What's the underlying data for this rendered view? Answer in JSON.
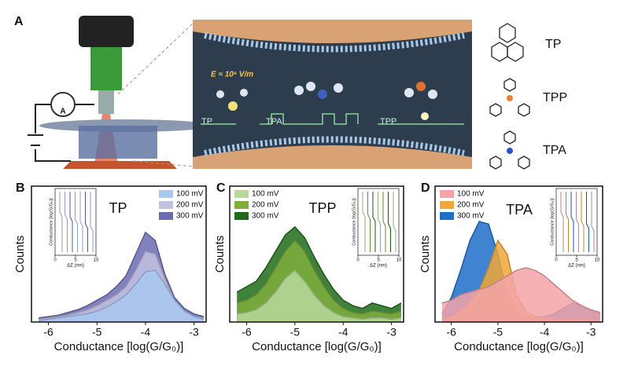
{
  "panel_a": {
    "panel": "A",
    "field_label": "E ≈ 10⁸ V/m",
    "junction_labels": [
      "TP",
      "TPA",
      "TPP"
    ],
    "molecules": [
      "TP",
      "TPP",
      "TPA"
    ]
  },
  "chart_data": [
    {
      "type": "area",
      "panel": "B",
      "title": "TP",
      "xlabel": "Conductance [log(G/G₀)]",
      "ylabel": "Counts",
      "x": [
        -6.2,
        -6.0,
        -5.8,
        -5.6,
        -5.4,
        -5.2,
        -5.0,
        -4.8,
        -4.6,
        -4.4,
        -4.2,
        -4.0,
        -3.8,
        -3.6,
        -3.4,
        -3.2,
        -3.0,
        -2.8
      ],
      "xlim": [
        -6.35,
        -2.75
      ],
      "xticks": [
        -6,
        -5,
        -4,
        -3
      ],
      "ylim": [
        0,
        100
      ],
      "legend": "upper right",
      "series": [
        {
          "name": "100 mV",
          "color": "#a9c8f0",
          "values": [
            1,
            2,
            3,
            4,
            5,
            6,
            8,
            11,
            15,
            20,
            28,
            37,
            38,
            28,
            16,
            8,
            4,
            2
          ]
        },
        {
          "name": "200 mV",
          "color": "#c3c1e0",
          "values": [
            2,
            3,
            4,
            5,
            7,
            9,
            12,
            16,
            20,
            26,
            38,
            52,
            50,
            32,
            16,
            8,
            4,
            3
          ]
        },
        {
          "name": "300 mV",
          "color": "#6b6bb3",
          "values": [
            3,
            4,
            5,
            7,
            9,
            12,
            16,
            20,
            26,
            34,
            50,
            66,
            60,
            35,
            18,
            10,
            6,
            4
          ]
        }
      ],
      "inset": {
        "xlabel": "ΔZ (nm)",
        "ylabel": "Conductance [log(G/G₀)]",
        "xlim": [
          0,
          10
        ],
        "xticks": [
          0,
          5,
          10
        ]
      }
    },
    {
      "type": "area",
      "panel": "C",
      "title": "TPP",
      "xlabel": "Conductance [log(G/G₀)]",
      "ylabel": "Counts",
      "x": [
        -6.2,
        -6.0,
        -5.8,
        -5.6,
        -5.4,
        -5.2,
        -5.0,
        -4.8,
        -4.6,
        -4.4,
        -4.2,
        -4.0,
        -3.8,
        -3.6,
        -3.4,
        -3.2,
        -3.0,
        -2.8
      ],
      "xlim": [
        -6.35,
        -2.75
      ],
      "xticks": [
        -6,
        -5,
        -4,
        -3
      ],
      "ylim": [
        0,
        100
      ],
      "legend": "upper left",
      "series": [
        {
          "name": "100 mV",
          "color": "#b9d99b",
          "values": [
            6,
            7,
            9,
            14,
            22,
            32,
            38,
            30,
            20,
            12,
            7,
            4,
            3,
            2,
            3,
            3,
            2,
            3
          ]
        },
        {
          "name": "200 mV",
          "color": "#7fae3c",
          "values": [
            14,
            16,
            20,
            28,
            40,
            52,
            60,
            52,
            38,
            26,
            16,
            10,
            7,
            6,
            8,
            7,
            6,
            8
          ]
        },
        {
          "name": "300 mV",
          "color": "#1f6b1a",
          "values": [
            22,
            26,
            30,
            40,
            52,
            64,
            70,
            62,
            48,
            35,
            24,
            16,
            12,
            10,
            14,
            12,
            10,
            14
          ]
        }
      ],
      "inset": {
        "xlabel": "ΔZ (nm)",
        "ylabel": "Conductance [log(G/G₀)]",
        "xlim": [
          0,
          10
        ],
        "xticks": [
          0,
          5,
          10
        ]
      }
    },
    {
      "type": "area",
      "panel": "D",
      "title": "TPA",
      "xlabel": "Conductance [log(G/G₀)]",
      "ylabel": "Counts",
      "x": [
        -6.2,
        -6.0,
        -5.8,
        -5.6,
        -5.4,
        -5.2,
        -5.0,
        -4.8,
        -4.6,
        -4.4,
        -4.2,
        -4.0,
        -3.8,
        -3.6,
        -3.4,
        -3.2,
        -3.0,
        -2.8
      ],
      "xlim": [
        -6.35,
        -2.75
      ],
      "xticks": [
        -6,
        -5,
        -4,
        -3
      ],
      "ylim": [
        0,
        100
      ],
      "legend": "upper left",
      "series": [
        {
          "name": "100 mV",
          "color": "#f4a3a8",
          "values": [
            14,
            16,
            20,
            22,
            24,
            26,
            30,
            34,
            38,
            40,
            38,
            34,
            28,
            22,
            16,
            12,
            9,
            7
          ]
        },
        {
          "name": "200 mV",
          "color": "#f0a73a",
          "values": [
            2,
            4,
            8,
            14,
            24,
            40,
            60,
            50,
            20,
            8,
            4,
            3,
            2,
            2,
            2,
            2,
            1,
            1
          ]
        },
        {
          "name": "300 mV",
          "color": "#1f6fc9",
          "values": [
            6,
            18,
            38,
            60,
            74,
            72,
            50,
            22,
            8,
            4,
            3,
            4,
            6,
            10,
            14,
            12,
            8,
            6
          ]
        }
      ],
      "inset": {
        "xlabel": "ΔZ (nm)",
        "ylabel": "Conductance [log(G/G₀)]",
        "xlim": [
          0,
          10
        ],
        "xticks": [
          0,
          5,
          10
        ]
      }
    }
  ]
}
